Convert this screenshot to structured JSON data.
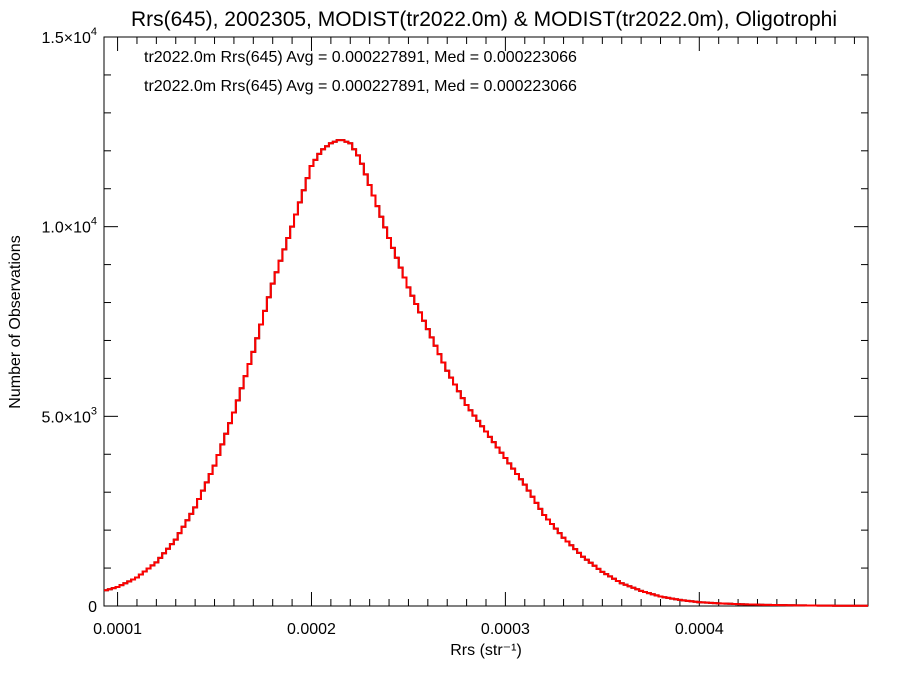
{
  "chart_data": {
    "type": "histogram-step",
    "title": "Rrs(645), 2002305, MODIST(tr2022.0m) & MODIST(tr2022.0m), Oligotrophi",
    "xlabel": "Rrs (str⁻¹)",
    "ylabel": "Number of Observations",
    "xlim": [
      9.3e-05,
      0.000487
    ],
    "ylim": [
      0,
      15000
    ],
    "x_ticks": [
      {
        "value": 0.0001,
        "label": "0.0001"
      },
      {
        "value": 0.0002,
        "label": "0.0002"
      },
      {
        "value": 0.0003,
        "label": "0.0003"
      },
      {
        "value": 0.0004,
        "label": "0.0004"
      }
    ],
    "y_ticks": [
      {
        "value": 0,
        "mantissa": "0",
        "exponent": ""
      },
      {
        "value": 5000,
        "mantissa": "5.0×10",
        "exponent": "3"
      },
      {
        "value": 10000,
        "mantissa": "1.0×10",
        "exponent": "4"
      },
      {
        "value": 15000,
        "mantissa": "1.5×10",
        "exponent": "4"
      }
    ],
    "legend_placement": "top-left",
    "annotations": [
      {
        "text": "tr2022.0m Rrs(645) Avg = 0.000227891, Med = 0.000223066",
        "color": "#000000"
      },
      {
        "text": "tr2022.0m Rrs(645) Avg = 0.000227891, Med = 0.000223066",
        "color": "#ff0000"
      }
    ],
    "series": [
      {
        "color": "#000000",
        "x": [
          9.3e-05,
          0.0001,
          0.00011,
          0.00012,
          0.00013,
          0.00014,
          0.00015,
          0.00016,
          0.00017,
          0.00018,
          0.00019,
          0.0002,
          0.000205,
          0.00021,
          0.000215,
          0.00022,
          0.000225,
          0.00023,
          0.00024,
          0.00025,
          0.00026,
          0.00027,
          0.00028,
          0.00029,
          0.0003,
          0.00031,
          0.00032,
          0.00033,
          0.00034,
          0.00035,
          0.00036,
          0.00037,
          0.00038,
          0.00039,
          0.0004,
          0.00041,
          0.00042,
          0.00043,
          0.00044,
          0.00045,
          0.00046,
          0.00047,
          0.00048,
          0.000487
        ],
        "y": [
          400,
          500,
          750,
          1150,
          1750,
          2600,
          3700,
          5100,
          6700,
          8500,
          10000,
          11600,
          12000,
          12200,
          12300,
          12200,
          11800,
          11100,
          9700,
          8400,
          7300,
          6200,
          5300,
          4600,
          3900,
          3200,
          2400,
          1800,
          1300,
          900,
          600,
          400,
          250,
          160,
          100,
          70,
          50,
          35,
          25,
          18,
          12,
          8,
          5,
          5
        ]
      },
      {
        "color": "#ff0000",
        "x": [
          9.3e-05,
          0.0001,
          0.00011,
          0.00012,
          0.00013,
          0.00014,
          0.00015,
          0.00016,
          0.00017,
          0.00018,
          0.00019,
          0.0002,
          0.000205,
          0.00021,
          0.000215,
          0.00022,
          0.000225,
          0.00023,
          0.00024,
          0.00025,
          0.00026,
          0.00027,
          0.00028,
          0.00029,
          0.0003,
          0.00031,
          0.00032,
          0.00033,
          0.00034,
          0.00035,
          0.00036,
          0.00037,
          0.00038,
          0.00039,
          0.0004,
          0.00041,
          0.00042,
          0.00043,
          0.00044,
          0.00045,
          0.00046,
          0.00047,
          0.00048,
          0.000487
        ],
        "y": [
          400,
          500,
          750,
          1150,
          1750,
          2600,
          3700,
          5100,
          6700,
          8500,
          10000,
          11600,
          12000,
          12200,
          12300,
          12200,
          11800,
          11100,
          9700,
          8400,
          7300,
          6200,
          5300,
          4600,
          3900,
          3200,
          2400,
          1800,
          1300,
          900,
          600,
          400,
          250,
          160,
          100,
          70,
          50,
          35,
          25,
          18,
          12,
          8,
          5,
          5
        ]
      }
    ]
  }
}
